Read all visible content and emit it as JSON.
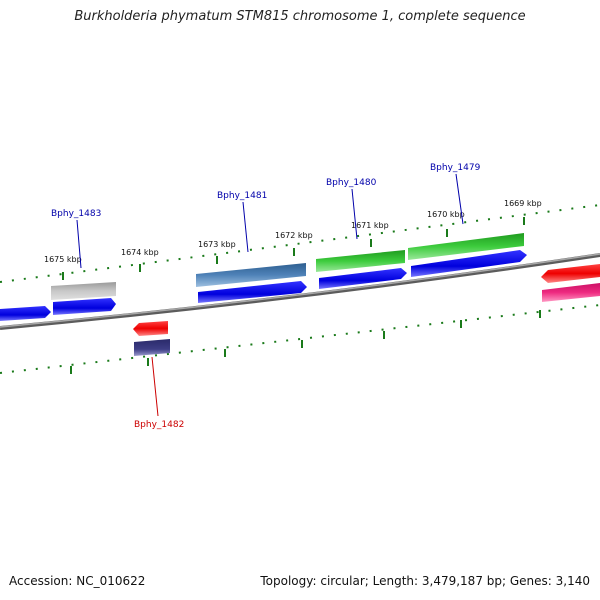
{
  "map": {
    "title": "Burkholderia phymatum STM815 chromosome 1, complete sequence",
    "accession": "Accession: NC_010622",
    "summary": "Topology: circular; Length: 3,479,187 bp; Genes: 3,140"
  },
  "scale_labels": [
    "1675 kbp",
    "1674 kbp",
    "1673 kbp",
    "1672 kbp",
    "1671 kbp",
    "1670 kbp",
    "1669 kbp"
  ],
  "gene_labels": [
    {
      "name": "Bphy_1483",
      "color": "#0000aa"
    },
    {
      "name": "Bphy_1481",
      "color": "#0000aa"
    },
    {
      "name": "Bphy_1480",
      "color": "#0000aa"
    },
    {
      "name": "Bphy_1479",
      "color": "#0000aa"
    },
    {
      "name": "Bphy_1482",
      "color": "#cc0000"
    }
  ],
  "colors": {
    "backbone": "#7a7a7a",
    "tick": "#1a7a1a",
    "cds": "#0000ee",
    "gene_gray": "#b0b0b0",
    "gene_steel": "#4a7ab0",
    "gene_green": "#33bb33",
    "gene_red": "#ee0000",
    "gene_navy": "#3a3a80",
    "gene_magenta": "#ee2277"
  }
}
